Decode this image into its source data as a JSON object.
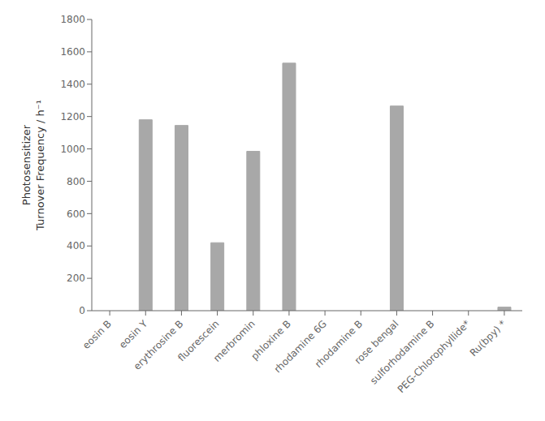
{
  "chart_data": {
    "type": "bar",
    "ylabel": "Photosensitizer\nTurnover Frequency / h⁻¹",
    "categories": [
      "eosin B",
      "eosin Y",
      "erythrosine B",
      "fluorescein",
      "merbromin",
      "phloxine B",
      "rhodamine 6G",
      "rhodamine B",
      "rose bengal",
      "sulforhodamine B",
      "PEG-Chlorophyllide*",
      "Ru(bpy) *"
    ],
    "values": [
      0,
      1180,
      1145,
      420,
      985,
      1530,
      0,
      0,
      1265,
      0,
      0,
      22
    ],
    "color": "#a8a8a8",
    "ylim": [
      0,
      1800
    ],
    "yticks": [
      0,
      200,
      400,
      600,
      800,
      1000,
      1200,
      1400,
      1600,
      1800
    ],
    "grid": false
  }
}
